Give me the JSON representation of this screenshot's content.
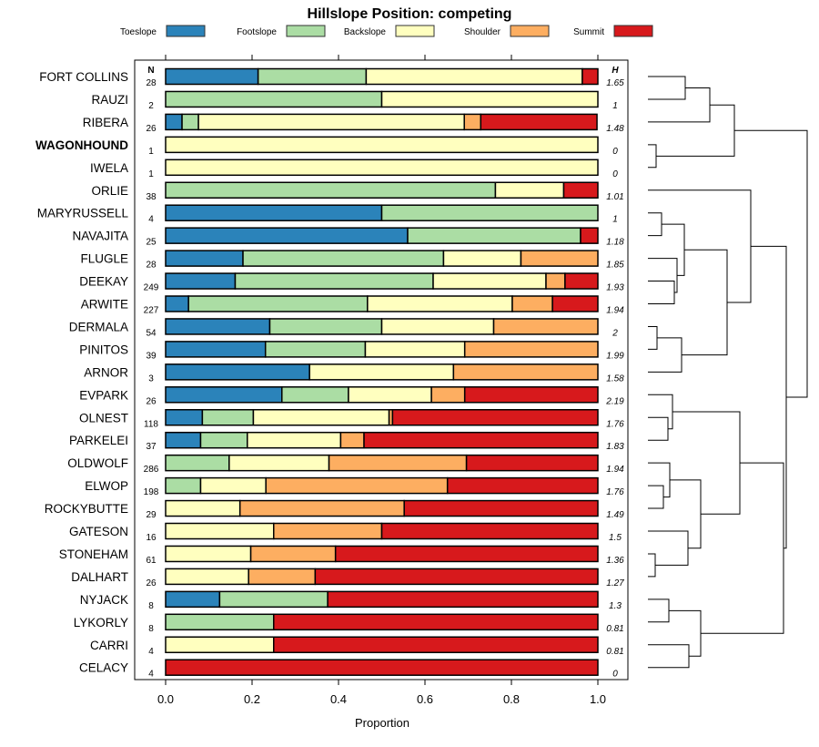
{
  "chart_data": {
    "type": "bar",
    "orientation": "horizontal-stacked",
    "title": "Hillslope Position: competing",
    "xlabel": "Proportion",
    "ylabel": "",
    "xlim": [
      0,
      1
    ],
    "xticks": [
      "0.0",
      "0.2",
      "0.4",
      "0.6",
      "0.8",
      "1.0"
    ],
    "xtick_values": [
      0,
      0.2,
      0.4,
      0.6,
      0.8,
      1.0
    ],
    "legend_position": "top",
    "n_header": "N",
    "h_header": "H",
    "highlighted_series": "WAGONHOUND",
    "series_names": [
      "Toeslope",
      "Footslope",
      "Backslope",
      "Shoulder",
      "Summit"
    ],
    "colors": [
      "#2b83ba",
      "#abdda4",
      "#ffffbf",
      "#fdae61",
      "#d7191c"
    ],
    "categories": [
      "FORT COLLINS",
      "RAUZI",
      "RIBERA",
      "WAGONHOUND",
      "IWELA",
      "ORLIE",
      "MARYRUSSELL",
      "NAVAJITA",
      "FLUGLE",
      "DEEKAY",
      "ARWITE",
      "DERMALA",
      "PINITOS",
      "ARNOR",
      "EVPARK",
      "OLNEST",
      "PARKELEI",
      "OLDWOLF",
      "ELWOP",
      "ROCKYBUTTE",
      "GATESON",
      "STONEHAM",
      "DALHART",
      "NYJACK",
      "LYKORLY",
      "CARRI",
      "CELACY"
    ],
    "n": [
      "28",
      "2",
      "26",
      "1",
      "1",
      "38",
      "4",
      "25",
      "28",
      "249",
      "227",
      "54",
      "39",
      "3",
      "26",
      "118",
      "37",
      "286",
      "198",
      "29",
      "16",
      "61",
      "26",
      "8",
      "8",
      "4",
      "4"
    ],
    "h": [
      "1.65",
      "1",
      "1.48",
      "0",
      "0",
      "1.01",
      "1",
      "1.18",
      "1.85",
      "1.93",
      "1.94",
      "2",
      "1.99",
      "1.58",
      "2.19",
      "1.76",
      "1.83",
      "1.94",
      "1.76",
      "1.49",
      "1.5",
      "1.36",
      "1.27",
      "1.3",
      "0.81",
      "0.81",
      "0"
    ],
    "series": [
      {
        "name": "Toeslope",
        "values": [
          0.214,
          0,
          0.038,
          0,
          0,
          0,
          0.5,
          0.56,
          0.179,
          0.161,
          0.053,
          0.241,
          0.231,
          0.333,
          0.269,
          0.085,
          0.081,
          0,
          0,
          0,
          0,
          0,
          0,
          0.125,
          0,
          0,
          0
        ]
      },
      {
        "name": "Footslope",
        "values": [
          0.25,
          0.5,
          0.038,
          0,
          0,
          0.763,
          0.5,
          0.4,
          0.464,
          0.458,
          0.414,
          0.259,
          0.231,
          0,
          0.154,
          0.118,
          0.108,
          0.147,
          0.081,
          0,
          0,
          0,
          0,
          0.25,
          0.25,
          0,
          0
        ]
      },
      {
        "name": "Backslope",
        "values": [
          0.5,
          0.5,
          0.615,
          1,
          1,
          0.158,
          0,
          0,
          0.179,
          0.261,
          0.335,
          0.259,
          0.23,
          0.333,
          0.192,
          0.314,
          0.216,
          0.231,
          0.151,
          0.172,
          0.25,
          0.197,
          0.192,
          0,
          0,
          0.25,
          0
        ]
      },
      {
        "name": "Shoulder",
        "values": [
          0,
          0,
          0.038,
          0,
          0,
          0,
          0,
          0,
          0.178,
          0.044,
          0.093,
          0.241,
          0.308,
          0.334,
          0.077,
          0.008,
          0.054,
          0.318,
          0.42,
          0.38,
          0.25,
          0.196,
          0.154,
          0,
          0,
          0,
          0
        ]
      },
      {
        "name": "Summit",
        "values": [
          0.036,
          0,
          0.269,
          0,
          0,
          0.079,
          0,
          0.04,
          0,
          0.076,
          0.105,
          0,
          0,
          0,
          0.308,
          0.475,
          0.541,
          0.304,
          0.348,
          0.448,
          0.5,
          0.607,
          0.654,
          0.625,
          0.75,
          0.75,
          1
        ]
      }
    ],
    "dendrogram": {
      "description": "Hierarchical clustering dendrogram of the rows, drawn to the right of the plot",
      "merges": [
        [
          0,
          1
        ],
        [
          2,
          "m0"
        ],
        [
          3,
          4
        ],
        [
          "m1",
          "m2"
        ],
        [
          6,
          7
        ],
        [
          9,
          10
        ],
        [
          8,
          "m5"
        ],
        [
          "m4",
          "m6"
        ],
        [
          11,
          12
        ],
        [
          13,
          "m8"
        ],
        [
          "m7",
          "m9"
        ],
        [
          5,
          "m10"
        ],
        [
          15,
          16
        ],
        [
          14,
          "m12"
        ],
        [
          18,
          19
        ],
        [
          17,
          "m14"
        ],
        [
          21,
          22
        ],
        [
          20,
          "m16"
        ],
        [
          "m15",
          "m17"
        ],
        [
          "m13",
          "m18"
        ],
        [
          23,
          24
        ],
        [
          25,
          26
        ],
        [
          "m20",
          "m21"
        ],
        [
          "m19",
          "m22"
        ],
        [
          "m11",
          "m23"
        ],
        [
          "m3",
          "m24"
        ]
      ]
    }
  }
}
